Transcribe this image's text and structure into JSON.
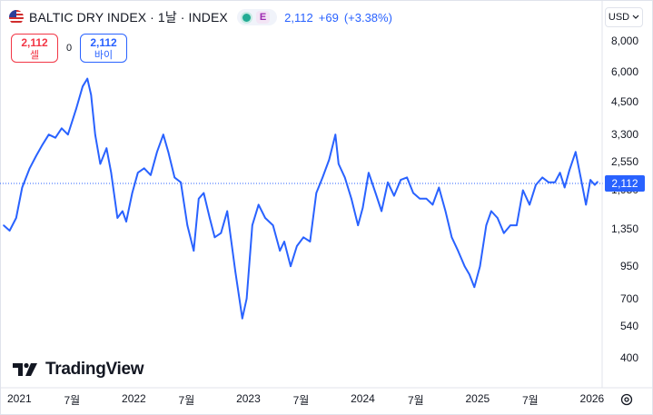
{
  "header": {
    "title": "BALTIC DRY INDEX · 1날 · INDEX",
    "exchange_badge": "E",
    "price": "2,112",
    "change": "+69",
    "change_pct": "(+3.38%)",
    "status_color": "#22ab94",
    "flag_icon": "us-flag-icon"
  },
  "trade": {
    "sell_value": "2,112",
    "sell_label": "셀",
    "spread": "0",
    "buy_value": "2,112",
    "buy_label": "바이"
  },
  "currency": {
    "label": "USD",
    "icon": "chevron-down-icon"
  },
  "price_axis": {
    "labels": [
      "8,000",
      "6,000",
      "4,500",
      "3,300",
      "2,550",
      "1,950",
      "1,350",
      "950",
      "700",
      "540",
      "400"
    ],
    "current_label": "2,112",
    "scale": "log"
  },
  "time_axis": {
    "labels": [
      "2021",
      "7월",
      "2022",
      "7월",
      "2023",
      "7월",
      "2024",
      "7월",
      "2025",
      "7월",
      "2026"
    ]
  },
  "brand": {
    "name": "TradingView",
    "icon": "tradingview-logo-icon"
  },
  "settings": {
    "icon": "gear-icon"
  },
  "colors": {
    "line": "#2962ff",
    "sell": "#f23645",
    "buy": "#2962ff",
    "grid": "#e0e3eb"
  },
  "chart_data": {
    "type": "line",
    "title": "BALTIC DRY INDEX",
    "ylabel": "",
    "xlabel": "",
    "yscale": "log",
    "ylim": [
      330,
      9000
    ],
    "grid": false,
    "series": [
      {
        "name": "",
        "x": [
          "2021-01-01",
          "2021-01-20",
          "2021-02-10",
          "2021-03-01",
          "2021-03-25",
          "2021-04-15",
          "2021-05-05",
          "2021-05-25",
          "2021-06-15",
          "2021-07-05",
          "2021-07-25",
          "2021-08-20",
          "2021-09-10",
          "2021-09-25",
          "2021-10-07",
          "2021-10-20",
          "2021-11-05",
          "2021-11-25",
          "2021-12-10",
          "2021-12-30",
          "2022-01-15",
          "2022-01-27",
          "2022-02-15",
          "2022-03-05",
          "2022-03-25",
          "2022-04-15",
          "2022-05-05",
          "2022-05-25",
          "2022-06-10",
          "2022-06-30",
          "2022-07-20",
          "2022-08-10",
          "2022-08-30",
          "2022-09-15",
          "2022-10-01",
          "2022-10-20",
          "2022-11-05",
          "2022-11-25",
          "2022-12-15",
          "2023-01-10",
          "2023-02-01",
          "2023-02-15",
          "2023-03-05",
          "2023-03-25",
          "2023-04-15",
          "2023-05-10",
          "2023-06-01",
          "2023-06-15",
          "2023-07-05",
          "2023-07-25",
          "2023-08-15",
          "2023-09-05",
          "2023-09-25",
          "2023-10-15",
          "2023-11-05",
          "2023-11-25",
          "2023-12-05",
          "2023-12-25",
          "2024-01-15",
          "2024-02-05",
          "2024-02-20",
          "2024-03-10",
          "2024-04-01",
          "2024-04-20",
          "2024-05-10",
          "2024-05-30",
          "2024-06-20",
          "2024-07-10",
          "2024-07-30",
          "2024-08-20",
          "2024-09-10",
          "2024-09-30",
          "2024-10-20",
          "2024-11-10",
          "2024-11-30",
          "2024-12-20",
          "2025-01-10",
          "2025-01-25",
          "2025-02-10",
          "2025-02-28",
          "2025-03-20",
          "2025-04-05",
          "2025-04-25",
          "2025-05-15",
          "2025-06-05",
          "2025-06-25",
          "2025-07-15",
          "2025-08-05",
          "2025-08-25",
          "2025-09-15",
          "2025-10-05",
          "2025-10-25",
          "2025-11-10",
          "2025-11-25",
          "2025-12-10",
          "2025-12-30",
          "2026-01-15",
          "2026-02-01",
          "2026-02-15",
          "2026-03-01",
          "2026-03-10"
        ],
        "values": [
          1400,
          1330,
          1500,
          2000,
          2400,
          2700,
          3000,
          3300,
          3200,
          3500,
          3300,
          4200,
          5200,
          5600,
          4800,
          3300,
          2500,
          2900,
          2300,
          1500,
          1600,
          1450,
          1900,
          2300,
          2400,
          2250,
          2800,
          3300,
          2800,
          2200,
          2100,
          1400,
          1100,
          1800,
          1900,
          1500,
          1250,
          1300,
          1600,
          900,
          580,
          700,
          1400,
          1700,
          1500,
          1400,
          1100,
          1200,
          950,
          1150,
          1250,
          1200,
          1900,
          2200,
          2600,
          3300,
          2500,
          2200,
          1800,
          1400,
          1650,
          2300,
          1900,
          1600,
          2100,
          1850,
          2150,
          2200,
          1900,
          1800,
          1800,
          1700,
          2000,
          1600,
          1250,
          1100,
          950,
          880,
          780,
          950,
          1400,
          1600,
          1500,
          1300,
          1400,
          1400,
          1950,
          1700,
          2050,
          2200,
          2100,
          2100,
          2300,
          2000,
          2350,
          2800,
          2200,
          1700,
          2150,
          2050,
          2112
        ]
      }
    ]
  }
}
